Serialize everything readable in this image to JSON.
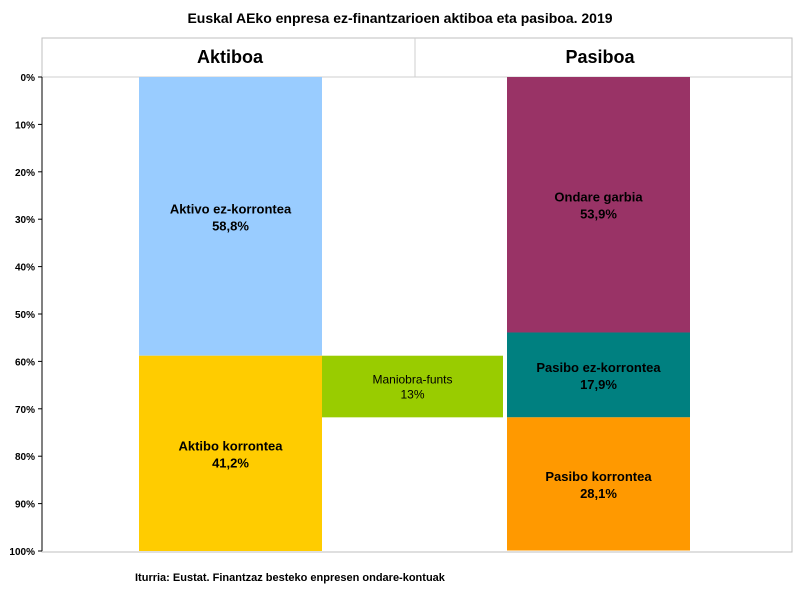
{
  "chart_data": {
    "type": "stacked-bar",
    "title": "Euskal AEko enpresa ez-finantzarioen aktiboa eta pasiboa. 2019",
    "column_headers": [
      "Aktiboa",
      "Pasiboa"
    ],
    "y_axis": {
      "ticks": [
        "0%",
        "10%",
        "20%",
        "30%",
        "40%",
        "50%",
        "60%",
        "70%",
        "80%",
        "90%",
        "100%"
      ],
      "range": [
        0,
        100
      ],
      "unit": "%"
    },
    "columns": [
      {
        "header": "Aktiboa",
        "segments": [
          {
            "label": "Aktivo ez-korrontea",
            "value": 58.8,
            "value_text": "58,8%",
            "color": "#99ccff"
          },
          {
            "label": "Aktibo korrontea",
            "value": 41.2,
            "value_text": "41,2%",
            "color": "#ffcc00"
          }
        ]
      },
      {
        "header": "Pasiboa",
        "segments": [
          {
            "label": "Ondare garbia",
            "value": 53.9,
            "value_text": "53,9%",
            "color": "#993366"
          },
          {
            "label": "Pasibo ez-korrontea",
            "value": 17.9,
            "value_text": "17,9%",
            "color": "#008080"
          },
          {
            "label": "Pasibo korrontea",
            "value": 28.1,
            "value_text": "28,1%",
            "color": "#ff9900"
          }
        ]
      }
    ],
    "bridge": {
      "label": "Maniobra-funts",
      "value": 13,
      "value_text": "13%",
      "start": 58.8,
      "end": 71.8,
      "color": "#99cc00"
    }
  },
  "source": "Iturria: Eustat. Finantzaz besteko enpresen ondare-kontuak"
}
